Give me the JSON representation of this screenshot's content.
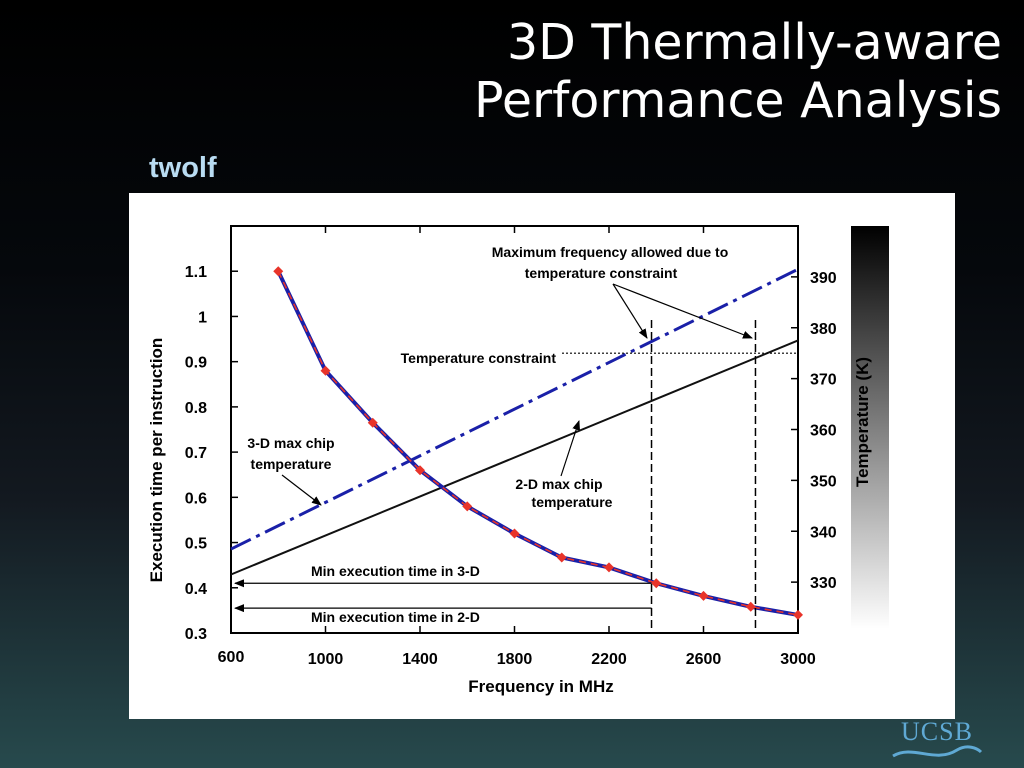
{
  "slide": {
    "title_line1": "3D Thermally-aware",
    "title_line2": "Performance Analysis",
    "subtitle": "twolf",
    "logo_text": "UCSB"
  },
  "chart_data": {
    "type": "line",
    "xlabel": "Frequency in MHz",
    "ylabel": "Execution time per instruction",
    "y2label": "Temperature (K)",
    "xlim": [
      600,
      3000
    ],
    "ylim": [
      0.3,
      1.2
    ],
    "y2lim": [
      320,
      400
    ],
    "x_ticks": [
      {
        "value": 600,
        "label": "600"
      },
      {
        "value": 1000,
        "label": "1000"
      },
      {
        "value": 1400,
        "label": "1400"
      },
      {
        "value": 1800,
        "label": "1800"
      },
      {
        "value": 2200,
        "label": "2200"
      },
      {
        "value": 2600,
        "label": "2600"
      },
      {
        "value": 3000,
        "label": "3000"
      }
    ],
    "y_ticks": [
      {
        "value": 0.3,
        "label": "0.3"
      },
      {
        "value": 0.4,
        "label": "0.4"
      },
      {
        "value": 0.5,
        "label": "0.5"
      },
      {
        "value": 0.6,
        "label": "0.6"
      },
      {
        "value": 0.7,
        "label": "0.7"
      },
      {
        "value": 0.8,
        "label": "0.8"
      },
      {
        "value": 0.9,
        "label": "0.9"
      },
      {
        "value": 1.0,
        "label": "1"
      },
      {
        "value": 1.1,
        "label": "1.1"
      }
    ],
    "y2_ticks": [
      {
        "value": 330,
        "label": "330"
      },
      {
        "value": 340,
        "label": "340"
      },
      {
        "value": 350,
        "label": "350"
      },
      {
        "value": 360,
        "label": "360"
      },
      {
        "value": 370,
        "label": "370"
      },
      {
        "value": 380,
        "label": "380"
      },
      {
        "value": 390,
        "label": "390"
      }
    ],
    "series": [
      {
        "axis": "left",
        "color": "#1a20a8",
        "accent": "#e8342a",
        "style": "solid-dashed-red-diamonds",
        "points": [
          [
            800,
            1.1
          ],
          [
            1000,
            0.88
          ],
          [
            1200,
            0.765
          ],
          [
            1400,
            0.66
          ],
          [
            1600,
            0.58
          ],
          [
            1800,
            0.52
          ],
          [
            2000,
            0.467
          ],
          [
            2200,
            0.445
          ],
          [
            2400,
            0.41
          ],
          [
            2600,
            0.382
          ],
          [
            2800,
            0.358
          ],
          [
            3000,
            0.34
          ]
        ]
      },
      {
        "axis": "right",
        "color": "#111111",
        "style": "solid",
        "points": [
          [
            600,
            331.5
          ],
          [
            3000,
            377.5
          ]
        ]
      },
      {
        "axis": "right",
        "color": "#1a20a8",
        "style": "dash-dot",
        "points": [
          [
            600,
            336.5
          ],
          [
            3000,
            391.5
          ]
        ]
      }
    ],
    "constraint": {
      "label": "Temperature constraint",
      "value": 375
    },
    "max_frequency_lines": [
      2380,
      2820
    ],
    "min_time_arrows": [
      {
        "label": "Min execution time in  3-D",
        "value": 0.41
      },
      {
        "label": "Min execution time in 2-D",
        "value": 0.355
      }
    ],
    "annotations": {
      "max_freq_line1": "Maximum frequency allowed due to",
      "max_freq_line2": "temperature constraint",
      "three_d_line1": "3-D max chip",
      "three_d_line2": "temperature",
      "two_d_line1": "2-D max chip",
      "two_d_line2": "temperature"
    },
    "gradient_bar": {
      "top_color": "#000000",
      "bottom_color": "#ffffff"
    }
  }
}
